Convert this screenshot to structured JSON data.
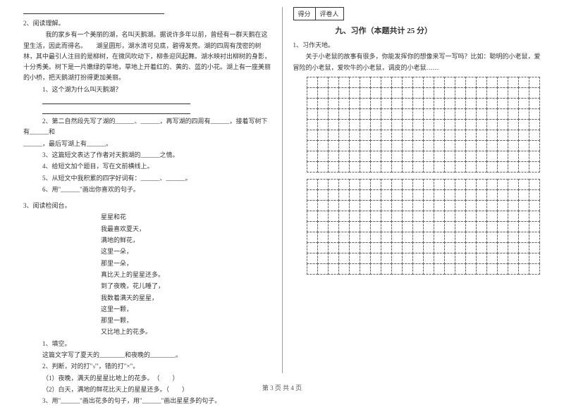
{
  "left": {
    "q2": {
      "num": "2、阅读理解。",
      "para": "　　我的家乡有一个美丽的湖，名叫天鹅湖。据说许多年以前，曾经有一群天鹅在这里生活，因此而得名。　　湖呈圆形，湖水清可见底，碧得发亮。湖的四周有茂密的树林，其中最引人注目的是柳树，在微风吹动下，柳条迎风起舞。湖水映衬出柳树的身影，十分秀美。树下是一片嫩绿的草地，草地上开着红的、黄的、蓝的小花。湖上有一座美丽的小桥，把天鹅湖打扮得更加美丽。",
      "sub1": "1、这个湖为什么叫天鹅湖？",
      "sub2a": "2、第二自然段先写了湖的______、______，再写湖的四周有______，接着写树下有______和",
      "sub2b": "______，最后写湖上有______。",
      "sub3": "3、这篇短文表达了作者对天鹅湖的______之情。",
      "sub4": "4、给短文加个题目，写在文前横线上。",
      "sub5": "5、从短文中我积累的四字好词有：______、______。",
      "sub6": "6、用\"______\"画出你喜欢的句子。"
    },
    "q3": {
      "num": "3、阅读检阅台。",
      "title": "星星和花",
      "lines": [
        "我最喜欢夏天，",
        "满地的鲜花，",
        "这里一朵，",
        "那里一朵，",
        "真比天上的星星还多。",
        "到了夜晚，花儿睡了，",
        "我数着满天的星星，",
        "这里一颗，",
        "那里一颗，",
        "又比地上的花多。"
      ],
      "sub1": "1、填空。",
      "sub1a": "这篇文字写了夏天的________和夜晚的________。",
      "sub2": "2、判断，对的打\"√\"，错的打\"×\"。",
      "sub2a": "（1）夜晚，满天的星星比地上的花多。　（　　）",
      "sub2b": "（2）白天，满地的鲜花比天上的星星还多。（　　）",
      "sub3": "3、用\"______\"画出花多的句子，用\"______\"画出星星多的句子。"
    }
  },
  "right": {
    "scoreLabels": {
      "a": "得分",
      "b": "评卷人"
    },
    "sectionTitle": "九、习作（本题共计 25 分）",
    "q1num": "1、习作天地。",
    "q1text": "　　关于小老鼠的故事有很多，你能发挥你的想像来写一写吗？比如：聪明的小老鼠，爱冒险的小老鼠，爱吹牛的小老鼠，调皮的小老鼠……",
    "grid": {
      "rows": 9,
      "cols": 22
    }
  },
  "footer": "第 3 页  共 4 页"
}
